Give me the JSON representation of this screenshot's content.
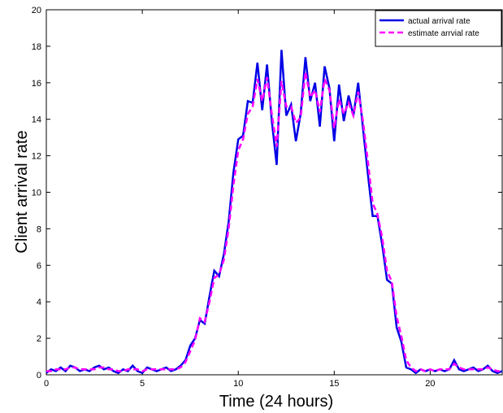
{
  "chart_data": {
    "type": "line",
    "xlabel": "Time (24 hours)",
    "ylabel": "Client arrival rate",
    "x": [
      0,
      0.25,
      0.5,
      0.75,
      1,
      1.25,
      1.5,
      1.75,
      2,
      2.25,
      2.5,
      2.75,
      3,
      3.25,
      3.5,
      3.75,
      4,
      4.25,
      4.5,
      4.75,
      5,
      5.25,
      5.5,
      5.75,
      6,
      6.25,
      6.5,
      6.75,
      7,
      7.25,
      7.5,
      7.75,
      8,
      8.25,
      8.5,
      8.75,
      9,
      9.25,
      9.5,
      9.75,
      10,
      10.25,
      10.5,
      10.75,
      11,
      11.25,
      11.5,
      11.75,
      12,
      12.25,
      12.5,
      12.75,
      13,
      13.25,
      13.5,
      13.75,
      14,
      14.25,
      14.5,
      14.75,
      15,
      15.25,
      15.5,
      15.75,
      16,
      16.25,
      16.5,
      16.75,
      17,
      17.25,
      17.5,
      17.75,
      18,
      18.25,
      18.5,
      18.75,
      19,
      19.25,
      19.5,
      19.75,
      20,
      20.25,
      20.5,
      20.75,
      21,
      21.25,
      21.5,
      21.75,
      22,
      22.25,
      22.5,
      22.75,
      23,
      23.25,
      23.5,
      23.75
    ],
    "series": [
      {
        "name": "actual arrival rate",
        "color": "#0000e6",
        "dash": false,
        "values": [
          0.1,
          0.3,
          0.2,
          0.4,
          0.2,
          0.5,
          0.4,
          0.2,
          0.3,
          0.2,
          0.4,
          0.5,
          0.3,
          0.4,
          0.2,
          0.1,
          0.3,
          0.2,
          0.5,
          0.2,
          0.1,
          0.4,
          0.3,
          0.2,
          0.3,
          0.4,
          0.2,
          0.3,
          0.5,
          0.8,
          1.6,
          2.0,
          3.0,
          2.8,
          4.3,
          5.7,
          5.4,
          6.6,
          8.4,
          11.1,
          12.9,
          13.1,
          15.0,
          14.9,
          17.1,
          14.5,
          17.0,
          13.9,
          11.5,
          17.8,
          14.2,
          14.8,
          12.8,
          14.3,
          17.4,
          15.0,
          16.0,
          13.6,
          16.9,
          15.7,
          12.8,
          15.9,
          13.9,
          15.3,
          14.2,
          16.0,
          13.5,
          11.0,
          8.7,
          8.7,
          7.1,
          5.2,
          5.0,
          2.6,
          1.8,
          0.4,
          0.3,
          0.1,
          0.3,
          0.2,
          0.3,
          0.2,
          0.3,
          0.2,
          0.3,
          0.8,
          0.3,
          0.2,
          0.3,
          0.4,
          0.2,
          0.3,
          0.5,
          0.2,
          0.1,
          0.2
        ]
      },
      {
        "name": "estimate arrvial rate",
        "color": "#ff00ff",
        "dash": true,
        "values": [
          0.2,
          0.2,
          0.3,
          0.3,
          0.3,
          0.4,
          0.4,
          0.3,
          0.3,
          0.3,
          0.3,
          0.4,
          0.4,
          0.3,
          0.3,
          0.2,
          0.2,
          0.3,
          0.3,
          0.3,
          0.2,
          0.3,
          0.3,
          0.3,
          0.3,
          0.3,
          0.3,
          0.3,
          0.4,
          0.7,
          1.3,
          1.9,
          3.1,
          2.9,
          4.0,
          5.3,
          5.5,
          6.3,
          8.0,
          10.4,
          12.3,
          12.9,
          14.3,
          14.7,
          16.2,
          15.0,
          16.3,
          14.3,
          12.5,
          16.1,
          14.7,
          14.7,
          13.8,
          14.1,
          16.6,
          15.2,
          15.6,
          14.4,
          16.2,
          15.6,
          13.5,
          15.1,
          14.3,
          14.9,
          14.2,
          15.5,
          13.9,
          11.7,
          9.4,
          8.8,
          7.5,
          5.7,
          5.1,
          3.2,
          2.1,
          0.8,
          0.4,
          0.2,
          0.3,
          0.2,
          0.3,
          0.2,
          0.3,
          0.3,
          0.3,
          0.6,
          0.4,
          0.3,
          0.3,
          0.3,
          0.3,
          0.3,
          0.4,
          0.3,
          0.2,
          0.2
        ]
      }
    ],
    "xlim": [
      0,
      23.75
    ],
    "ylim": [
      0,
      20
    ],
    "xticks": [
      0,
      5,
      10,
      15,
      20
    ],
    "yticks": [
      0,
      2,
      4,
      6,
      8,
      10,
      12,
      14,
      16,
      18,
      20
    ],
    "grid": false,
    "legend": "upper right"
  }
}
